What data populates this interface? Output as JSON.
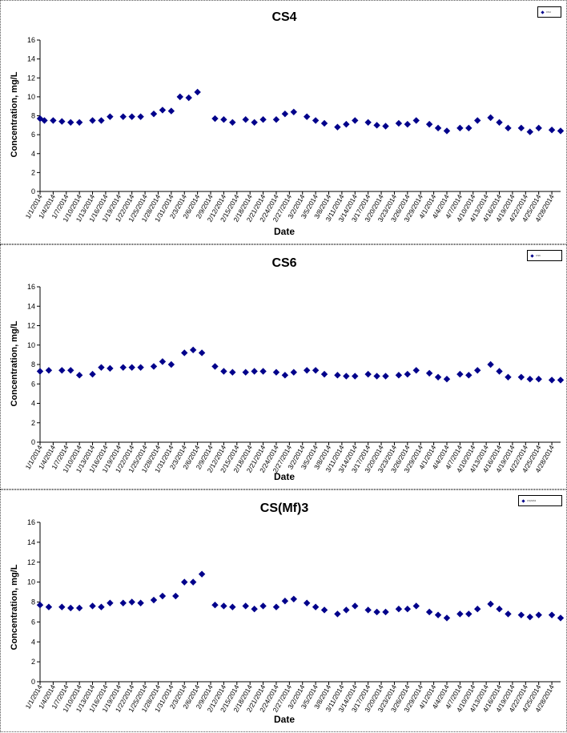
{
  "chart_data": [
    {
      "type": "scatter",
      "title": "CS4",
      "legend_entry": "CS4",
      "legend_placement": "top-right",
      "xlabel": "Date",
      "ylabel": "Concentration, mg/L",
      "ylim": [
        0,
        16
      ],
      "yticks": [
        "0",
        "2",
        "4",
        "6",
        "8",
        "10",
        "12",
        "14",
        "16"
      ],
      "xlim": [
        "1/1/2014",
        "4/30/2014"
      ],
      "xticks": [
        "1/1/2014",
        "1/4/2014",
        "1/7/2014",
        "1/10/2014",
        "1/13/2014",
        "1/16/2014",
        "1/19/2014",
        "1/22/2014",
        "1/25/2014",
        "1/28/2014",
        "1/31/2014",
        "2/3/2014",
        "2/6/2014",
        "2/9/2014",
        "2/12/2014",
        "2/15/2014",
        "2/18/2014",
        "2/21/2014",
        "2/24/2014",
        "2/27/2014",
        "3/2/2014",
        "3/5/2014",
        "3/8/2014",
        "3/11/2014",
        "3/14/2014",
        "3/17/2014",
        "3/20/2014",
        "3/23/2014",
        "3/26/2014",
        "3/29/2014",
        "4/1/2014",
        "4/4/2014",
        "4/7/2014",
        "4/10/2014",
        "4/13/2014",
        "4/16/2014",
        "4/19/2014",
        "4/22/2014",
        "4/25/2014",
        "4/28/2014"
      ],
      "grid": false,
      "marker_color": "#00008b",
      "points": [
        {
          "x": "1/1/2014",
          "y": 7.7
        },
        {
          "x": "1/2/2014",
          "y": 7.5
        },
        {
          "x": "1/4/2014",
          "y": 7.5
        },
        {
          "x": "1/6/2014",
          "y": 7.4
        },
        {
          "x": "1/8/2014",
          "y": 7.3
        },
        {
          "x": "1/10/2014",
          "y": 7.3
        },
        {
          "x": "1/13/2014",
          "y": 7.5
        },
        {
          "x": "1/15/2014",
          "y": 7.5
        },
        {
          "x": "1/17/2014",
          "y": 7.9
        },
        {
          "x": "1/20/2014",
          "y": 7.9
        },
        {
          "x": "1/22/2014",
          "y": 7.9
        },
        {
          "x": "1/24/2014",
          "y": 7.9
        },
        {
          "x": "1/27/2014",
          "y": 8.2
        },
        {
          "x": "1/29/2014",
          "y": 8.6
        },
        {
          "x": "1/31/2014",
          "y": 8.5
        },
        {
          "x": "2/2/2014",
          "y": 10.0
        },
        {
          "x": "2/4/2014",
          "y": 9.9
        },
        {
          "x": "2/6/2014",
          "y": 10.5
        },
        {
          "x": "2/10/2014",
          "y": 7.7
        },
        {
          "x": "2/12/2014",
          "y": 7.6
        },
        {
          "x": "2/14/2014",
          "y": 7.3
        },
        {
          "x": "2/17/2014",
          "y": 7.6
        },
        {
          "x": "2/19/2014",
          "y": 7.3
        },
        {
          "x": "2/21/2014",
          "y": 7.6
        },
        {
          "x": "2/24/2014",
          "y": 7.6
        },
        {
          "x": "2/26/2014",
          "y": 8.2
        },
        {
          "x": "2/28/2014",
          "y": 8.4
        },
        {
          "x": "3/3/2014",
          "y": 7.9
        },
        {
          "x": "3/5/2014",
          "y": 7.5
        },
        {
          "x": "3/7/2014",
          "y": 7.2
        },
        {
          "x": "3/10/2014",
          "y": 6.8
        },
        {
          "x": "3/12/2014",
          "y": 7.1
        },
        {
          "x": "3/14/2014",
          "y": 7.5
        },
        {
          "x": "3/17/2014",
          "y": 7.3
        },
        {
          "x": "3/19/2014",
          "y": 7.0
        },
        {
          "x": "3/21/2014",
          "y": 6.9
        },
        {
          "x": "3/24/2014",
          "y": 7.2
        },
        {
          "x": "3/26/2014",
          "y": 7.1
        },
        {
          "x": "3/28/2014",
          "y": 7.5
        },
        {
          "x": "3/31/2014",
          "y": 7.1
        },
        {
          "x": "4/2/2014",
          "y": 6.7
        },
        {
          "x": "4/4/2014",
          "y": 6.4
        },
        {
          "x": "4/7/2014",
          "y": 6.7
        },
        {
          "x": "4/9/2014",
          "y": 6.7
        },
        {
          "x": "4/11/2014",
          "y": 7.5
        },
        {
          "x": "4/14/2014",
          "y": 7.8
        },
        {
          "x": "4/16/2014",
          "y": 7.3
        },
        {
          "x": "4/18/2014",
          "y": 6.7
        },
        {
          "x": "4/21/2014",
          "y": 6.7
        },
        {
          "x": "4/23/2014",
          "y": 6.3
        },
        {
          "x": "4/25/2014",
          "y": 6.7
        },
        {
          "x": "4/28/2014",
          "y": 6.5
        },
        {
          "x": "4/30/2014",
          "y": 6.4
        }
      ]
    },
    {
      "type": "scatter",
      "title": "CS6",
      "legend_entry": "CS6",
      "legend_placement": "top-right",
      "xlabel": "Date",
      "ylabel": "Concentration, mg/L",
      "ylim": [
        0,
        16
      ],
      "yticks": [
        "0",
        "2",
        "4",
        "6",
        "8",
        "10",
        "12",
        "14",
        "16"
      ],
      "xlim": [
        "1/1/2014",
        "4/30/2014"
      ],
      "xticks": [
        "1/1/2014",
        "1/4/2014",
        "1/7/2014",
        "1/10/2014",
        "1/13/2014",
        "1/16/2014",
        "1/19/2014",
        "1/22/2014",
        "1/25/2014",
        "1/28/2014",
        "1/31/2014",
        "2/3/2014",
        "2/6/2014",
        "2/9/2014",
        "2/12/2014",
        "2/15/2014",
        "2/18/2014",
        "2/21/2014",
        "2/24/2014",
        "2/27/2014",
        "3/2/2014",
        "3/5/2014",
        "3/8/2014",
        "3/11/2014",
        "3/14/2014",
        "3/17/2014",
        "3/20/2014",
        "3/23/2014",
        "3/26/2014",
        "3/29/2014",
        "4/1/2014",
        "4/4/2014",
        "4/7/2014",
        "4/10/2014",
        "4/13/2014",
        "4/16/2014",
        "4/19/2014",
        "4/22/2014",
        "4/25/2014",
        "4/28/2014"
      ],
      "grid": false,
      "marker_color": "#00008b",
      "points": [
        {
          "x": "1/1/2014",
          "y": 7.3
        },
        {
          "x": "1/3/2014",
          "y": 7.4
        },
        {
          "x": "1/6/2014",
          "y": 7.4
        },
        {
          "x": "1/8/2014",
          "y": 7.4
        },
        {
          "x": "1/10/2014",
          "y": 6.9
        },
        {
          "x": "1/13/2014",
          "y": 7.0
        },
        {
          "x": "1/15/2014",
          "y": 7.7
        },
        {
          "x": "1/17/2014",
          "y": 7.6
        },
        {
          "x": "1/20/2014",
          "y": 7.7
        },
        {
          "x": "1/22/2014",
          "y": 7.7
        },
        {
          "x": "1/24/2014",
          "y": 7.7
        },
        {
          "x": "1/27/2014",
          "y": 7.8
        },
        {
          "x": "1/29/2014",
          "y": 8.3
        },
        {
          "x": "1/31/2014",
          "y": 8.0
        },
        {
          "x": "2/3/2014",
          "y": 9.2
        },
        {
          "x": "2/5/2014",
          "y": 9.5
        },
        {
          "x": "2/7/2014",
          "y": 9.2
        },
        {
          "x": "2/10/2014",
          "y": 7.8
        },
        {
          "x": "2/12/2014",
          "y": 7.3
        },
        {
          "x": "2/14/2014",
          "y": 7.2
        },
        {
          "x": "2/17/2014",
          "y": 7.2
        },
        {
          "x": "2/19/2014",
          "y": 7.3
        },
        {
          "x": "2/21/2014",
          "y": 7.3
        },
        {
          "x": "2/24/2014",
          "y": 7.2
        },
        {
          "x": "2/26/2014",
          "y": 6.9
        },
        {
          "x": "2/28/2014",
          "y": 7.2
        },
        {
          "x": "3/3/2014",
          "y": 7.4
        },
        {
          "x": "3/5/2014",
          "y": 7.4
        },
        {
          "x": "3/7/2014",
          "y": 7.0
        },
        {
          "x": "3/10/2014",
          "y": 6.9
        },
        {
          "x": "3/12/2014",
          "y": 6.8
        },
        {
          "x": "3/14/2014",
          "y": 6.8
        },
        {
          "x": "3/17/2014",
          "y": 7.0
        },
        {
          "x": "3/19/2014",
          "y": 6.8
        },
        {
          "x": "3/21/2014",
          "y": 6.8
        },
        {
          "x": "3/24/2014",
          "y": 6.9
        },
        {
          "x": "3/26/2014",
          "y": 7.0
        },
        {
          "x": "3/28/2014",
          "y": 7.4
        },
        {
          "x": "3/31/2014",
          "y": 7.1
        },
        {
          "x": "4/2/2014",
          "y": 6.7
        },
        {
          "x": "4/4/2014",
          "y": 6.5
        },
        {
          "x": "4/7/2014",
          "y": 7.0
        },
        {
          "x": "4/9/2014",
          "y": 6.9
        },
        {
          "x": "4/11/2014",
          "y": 7.4
        },
        {
          "x": "4/14/2014",
          "y": 8.0
        },
        {
          "x": "4/16/2014",
          "y": 7.3
        },
        {
          "x": "4/18/2014",
          "y": 6.7
        },
        {
          "x": "4/21/2014",
          "y": 6.7
        },
        {
          "x": "4/23/2014",
          "y": 6.5
        },
        {
          "x": "4/25/2014",
          "y": 6.5
        },
        {
          "x": "4/28/2014",
          "y": 6.4
        },
        {
          "x": "4/30/2014",
          "y": 6.4
        }
      ]
    },
    {
      "type": "scatter",
      "title": "CS(Mf)3",
      "legend_entry": "CS(Mf)3",
      "legend_placement": "top-right",
      "xlabel": "Date",
      "ylabel": "Concentration, mg/L",
      "ylim": [
        0,
        16
      ],
      "yticks": [
        "0",
        "2",
        "4",
        "6",
        "8",
        "10",
        "12",
        "14",
        "16"
      ],
      "xlim": [
        "1/1/2014",
        "4/30/2014"
      ],
      "xticks": [
        "1/1/2014",
        "1/4/2014",
        "1/7/2014",
        "1/10/2014",
        "1/13/2014",
        "1/16/2014",
        "1/19/2014",
        "1/22/2014",
        "1/25/2014",
        "1/28/2014",
        "1/31/2014",
        "2/3/2014",
        "2/6/2014",
        "2/9/2014",
        "2/12/2014",
        "2/15/2014",
        "2/18/2014",
        "2/21/2014",
        "2/24/2014",
        "2/27/2014",
        "3/2/2014",
        "3/5/2014",
        "3/8/2014",
        "3/11/2014",
        "3/14/2014",
        "3/17/2014",
        "3/20/2014",
        "3/23/2014",
        "3/26/2014",
        "3/29/2014",
        "4/1/2014",
        "4/4/2014",
        "4/7/2014",
        "4/10/2014",
        "4/13/2014",
        "4/16/2014",
        "4/19/2014",
        "4/22/2014",
        "4/25/2014",
        "4/28/2014"
      ],
      "grid": false,
      "marker_color": "#00008b",
      "points": [
        {
          "x": "1/1/2014",
          "y": 7.7
        },
        {
          "x": "1/3/2014",
          "y": 7.5
        },
        {
          "x": "1/6/2014",
          "y": 7.5
        },
        {
          "x": "1/8/2014",
          "y": 7.4
        },
        {
          "x": "1/10/2014",
          "y": 7.4
        },
        {
          "x": "1/13/2014",
          "y": 7.6
        },
        {
          "x": "1/15/2014",
          "y": 7.5
        },
        {
          "x": "1/17/2014",
          "y": 7.9
        },
        {
          "x": "1/20/2014",
          "y": 7.9
        },
        {
          "x": "1/22/2014",
          "y": 8.0
        },
        {
          "x": "1/24/2014",
          "y": 7.9
        },
        {
          "x": "1/27/2014",
          "y": 8.2
        },
        {
          "x": "1/29/2014",
          "y": 8.6
        },
        {
          "x": "2/1/2014",
          "y": 8.6
        },
        {
          "x": "2/3/2014",
          "y": 10.0
        },
        {
          "x": "2/5/2014",
          "y": 10.0
        },
        {
          "x": "2/7/2014",
          "y": 10.8
        },
        {
          "x": "2/10/2014",
          "y": 7.7
        },
        {
          "x": "2/12/2014",
          "y": 7.6
        },
        {
          "x": "2/14/2014",
          "y": 7.5
        },
        {
          "x": "2/17/2014",
          "y": 7.6
        },
        {
          "x": "2/19/2014",
          "y": 7.3
        },
        {
          "x": "2/21/2014",
          "y": 7.6
        },
        {
          "x": "2/24/2014",
          "y": 7.5
        },
        {
          "x": "2/26/2014",
          "y": 8.1
        },
        {
          "x": "2/28/2014",
          "y": 8.3
        },
        {
          "x": "3/3/2014",
          "y": 7.9
        },
        {
          "x": "3/5/2014",
          "y": 7.5
        },
        {
          "x": "3/7/2014",
          "y": 7.2
        },
        {
          "x": "3/10/2014",
          "y": 6.8
        },
        {
          "x": "3/12/2014",
          "y": 7.2
        },
        {
          "x": "3/14/2014",
          "y": 7.6
        },
        {
          "x": "3/17/2014",
          "y": 7.2
        },
        {
          "x": "3/19/2014",
          "y": 7.0
        },
        {
          "x": "3/21/2014",
          "y": 7.0
        },
        {
          "x": "3/24/2014",
          "y": 7.3
        },
        {
          "x": "3/26/2014",
          "y": 7.3
        },
        {
          "x": "3/28/2014",
          "y": 7.6
        },
        {
          "x": "3/31/2014",
          "y": 7.0
        },
        {
          "x": "4/2/2014",
          "y": 6.7
        },
        {
          "x": "4/4/2014",
          "y": 6.4
        },
        {
          "x": "4/7/2014",
          "y": 6.8
        },
        {
          "x": "4/9/2014",
          "y": 6.8
        },
        {
          "x": "4/11/2014",
          "y": 7.3
        },
        {
          "x": "4/14/2014",
          "y": 7.8
        },
        {
          "x": "4/16/2014",
          "y": 7.3
        },
        {
          "x": "4/18/2014",
          "y": 6.8
        },
        {
          "x": "4/21/2014",
          "y": 6.7
        },
        {
          "x": "4/23/2014",
          "y": 6.5
        },
        {
          "x": "4/25/2014",
          "y": 6.7
        },
        {
          "x": "4/28/2014",
          "y": 6.7
        },
        {
          "x": "4/30/2014",
          "y": 6.4
        }
      ]
    }
  ]
}
